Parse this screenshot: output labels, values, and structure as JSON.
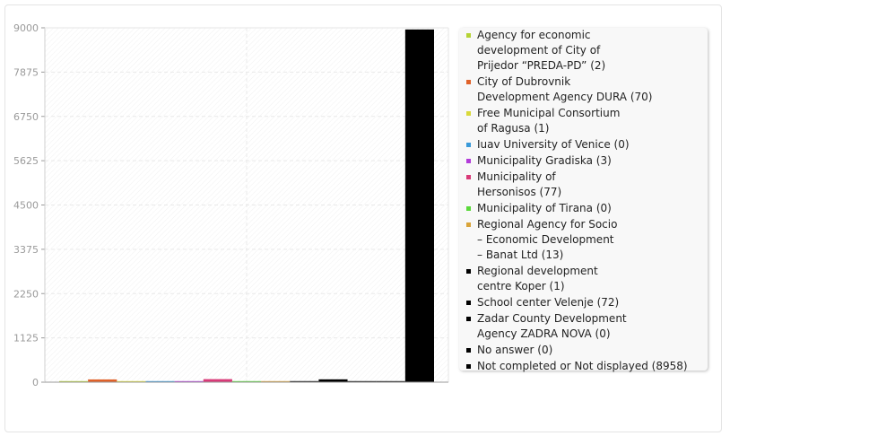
{
  "chart_data": {
    "type": "bar",
    "ylim": [
      0,
      9000
    ],
    "yticks": [
      "0",
      "1125",
      "2250",
      "3375",
      "4500",
      "5625",
      "6750",
      "7875",
      "9000"
    ],
    "grid": true,
    "legend_position": "right",
    "series": [
      {
        "name": "Agency for economic\ndevelopment of City of\nPrijedor “PREDA-PD” (2)",
        "value": 2,
        "color": "#b5d335"
      },
      {
        "name": "City of Dubrovnik\nDevelopment Agency DURA (70)",
        "value": 70,
        "color": "#e0622a"
      },
      {
        "name": "Free Municipal Consortium\nof Ragusa (1)",
        "value": 1,
        "color": "#d9d93a"
      },
      {
        "name": "Iuav University of Venice (0)",
        "value": 0,
        "color": "#3a9ad9"
      },
      {
        "name": "Municipality Gradiska (3)",
        "value": 3,
        "color": "#b23bd9"
      },
      {
        "name": "Municipality of\nHersonisos (77)",
        "value": 77,
        "color": "#d93a78"
      },
      {
        "name": "Municipality of Tirana (0)",
        "value": 0,
        "color": "#5ad93a"
      },
      {
        "name": "Regional Agency for Socio\n– Economic Development\n– Banat Ltd (13)",
        "value": 13,
        "color": "#d9a43a"
      },
      {
        "name": "Regional development\ncentre Koper (1)",
        "value": 1,
        "color": "#000000"
      },
      {
        "name": "School center Velenje (72)",
        "value": 72,
        "color": "#000000"
      },
      {
        "name": "Zadar County Development\nAgency ZADRA NOVA (0)",
        "value": 0,
        "color": "#000000"
      },
      {
        "name": "No answer (0)",
        "value": 0,
        "color": "#000000"
      },
      {
        "name": "Not completed or Not displayed (8958)",
        "value": 8958,
        "color": "#000000"
      }
    ]
  }
}
